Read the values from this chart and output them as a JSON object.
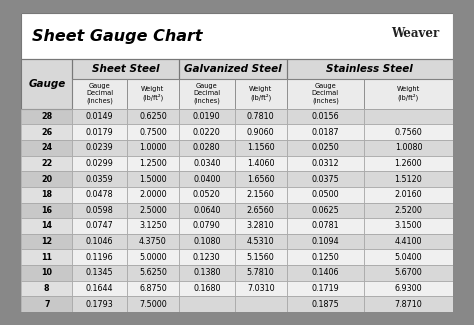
{
  "title": "Sheet Gauge Chart",
  "bg_outer": "#888888",
  "bg_white": "#ffffff",
  "bg_header": "#d8d8d8",
  "bg_row_dark": "#d8d8d8",
  "bg_row_light": "#f0f0f0",
  "gauges": [
    "28",
    "26",
    "24",
    "22",
    "20",
    "18",
    "16",
    "14",
    "12",
    "11",
    "10",
    "8",
    "7"
  ],
  "ss_dec": [
    "0.0149",
    "0.0179",
    "0.0239",
    "0.0299",
    "0.0359",
    "0.0478",
    "0.0598",
    "0.0747",
    "0.1046",
    "0.1196",
    "0.1345",
    "0.1644",
    "0.1793"
  ],
  "ss_wt": [
    "0.6250",
    "0.7500",
    "1.0000",
    "1.2500",
    "1.5000",
    "2.0000",
    "2.5000",
    "3.1250",
    "4.3750",
    "5.0000",
    "5.6250",
    "6.8750",
    "7.5000"
  ],
  "gv_dec": [
    "0.0190",
    "0.0220",
    "0.0280",
    "0.0340",
    "0.0400",
    "0.0520",
    "0.0640",
    "0.0790",
    "0.1080",
    "0.1230",
    "0.1380",
    "0.1680",
    ""
  ],
  "gv_wt": [
    "0.7810",
    "0.9060",
    "1.1560",
    "1.4060",
    "1.6560",
    "2.1560",
    "2.6560",
    "3.2810",
    "4.5310",
    "5.1560",
    "5.7810",
    "7.0310",
    ""
  ],
  "st_dec": [
    "0.0156",
    "0.0187",
    "0.0250",
    "0.0312",
    "0.0375",
    "0.0500",
    "0.0625",
    "0.0781",
    "0.1094",
    "0.1250",
    "0.1406",
    "0.1719",
    "0.1875"
  ],
  "st_wt": [
    "",
    "0.7560",
    "1.0080",
    "1.2600",
    "1.5120",
    "2.0160",
    "2.5200",
    "3.1500",
    "4.4100",
    "5.0400",
    "5.6700",
    "6.9300",
    "7.8710"
  ]
}
